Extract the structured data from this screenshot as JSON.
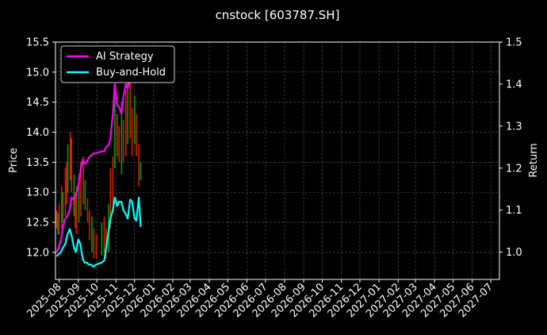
{
  "chart_data": {
    "type": "line",
    "title": "cnstock [603787.SH]",
    "ylabel": "Price",
    "y2label": "Return",
    "ylim": [
      11.55,
      15.5
    ],
    "y2lim": [
      0.935,
      1.5
    ],
    "xlim": [
      "2025-07-26",
      "2027-07-15"
    ],
    "grid": true,
    "legend_position": "top-left",
    "yticks": [
      "12.0",
      "12.5",
      "13.0",
      "13.5",
      "14.0",
      "14.5",
      "15.0",
      "15.5"
    ],
    "y2ticks": [
      "1.0",
      "1.1",
      "1.2",
      "1.3",
      "1.4",
      "1.5"
    ],
    "xticks": [
      "2025-08",
      "2025-09",
      "2025-10",
      "2025-11",
      "2025-12",
      "2026-01",
      "2026-02",
      "2026-03",
      "2026-04",
      "2026-05",
      "2026-06",
      "2026-07",
      "2026-08",
      "2026-09",
      "2026-10",
      "2026-11",
      "2026-12",
      "2027-01",
      "2027-02",
      "2027-03",
      "2027-04",
      "2027-05",
      "2027-06",
      "2027-07"
    ],
    "colors": {
      "up": "#00a000",
      "down": "#d62000",
      "ai": "#ff00ff",
      "bh": "#00ffff",
      "grid": "#555555"
    },
    "candles": [
      {
        "date": "2025-07-28",
        "low": 12.4,
        "high": 12.7
      },
      {
        "date": "2025-07-30",
        "low": 12.3,
        "high": 12.65
      },
      {
        "date": "2025-08-01",
        "low": 12.3,
        "high": 12.8
      },
      {
        "date": "2025-08-05",
        "low": 12.4,
        "high": 13.1
      },
      {
        "date": "2025-08-07",
        "low": 12.5,
        "high": 13.0
      },
      {
        "date": "2025-08-11",
        "low": 12.6,
        "high": 13.4
      },
      {
        "date": "2025-08-13",
        "low": 12.8,
        "high": 13.5
      },
      {
        "date": "2025-08-15",
        "low": 13.0,
        "high": 13.8
      },
      {
        "date": "2025-08-19",
        "low": 13.2,
        "high": 14.0
      },
      {
        "date": "2025-08-21",
        "low": 13.0,
        "high": 13.9
      },
      {
        "date": "2025-08-25",
        "low": 12.6,
        "high": 13.3
      },
      {
        "date": "2025-08-27",
        "low": 12.4,
        "high": 13.0
      },
      {
        "date": "2025-08-29",
        "low": 12.3,
        "high": 13.1
      },
      {
        "date": "2025-09-02",
        "low": 12.5,
        "high": 13.2
      },
      {
        "date": "2025-09-05",
        "low": 12.6,
        "high": 13.5
      },
      {
        "date": "2025-09-09",
        "low": 12.8,
        "high": 13.6
      },
      {
        "date": "2025-09-12",
        "low": 12.7,
        "high": 13.2
      },
      {
        "date": "2025-09-16",
        "low": 12.5,
        "high": 12.9
      },
      {
        "date": "2025-09-19",
        "low": 12.2,
        "high": 12.7
      },
      {
        "date": "2025-09-23",
        "low": 12.0,
        "high": 12.6
      },
      {
        "date": "2025-09-26",
        "low": 11.9,
        "high": 12.4
      },
      {
        "date": "2025-09-30",
        "low": 11.9,
        "high": 12.3
      },
      {
        "date": "2025-10-09",
        "low": 11.95,
        "high": 12.5
      },
      {
        "date": "2025-10-13",
        "low": 12.0,
        "high": 12.6
      },
      {
        "date": "2025-10-16",
        "low": 11.9,
        "high": 12.4
      },
      {
        "date": "2025-10-20",
        "low": 12.0,
        "high": 12.8
      },
      {
        "date": "2025-10-23",
        "low": 12.4,
        "high": 13.4
      },
      {
        "date": "2025-10-27",
        "low": 12.8,
        "high": 13.6
      },
      {
        "date": "2025-10-30",
        "low": 13.4,
        "high": 14.6
      },
      {
        "date": "2025-11-03",
        "low": 13.6,
        "high": 14.3
      },
      {
        "date": "2025-11-06",
        "low": 13.5,
        "high": 14.1
      },
      {
        "date": "2025-11-10",
        "low": 13.3,
        "high": 14.5
      },
      {
        "date": "2025-11-13",
        "low": 13.5,
        "high": 14.2
      },
      {
        "date": "2025-11-17",
        "low": 13.6,
        "high": 14.7
      },
      {
        "date": "2025-11-20",
        "low": 13.8,
        "high": 14.9
      },
      {
        "date": "2025-11-24",
        "low": 13.9,
        "high": 15.0
      },
      {
        "date": "2025-11-27",
        "low": 13.6,
        "high": 14.4
      },
      {
        "date": "2025-12-01",
        "low": 13.8,
        "high": 14.6
      },
      {
        "date": "2025-12-04",
        "low": 13.6,
        "high": 14.3
      },
      {
        "date": "2025-12-08",
        "low": 13.1,
        "high": 13.8
      },
      {
        "date": "2025-12-11",
        "low": 13.2,
        "high": 13.5
      }
    ],
    "series": [
      {
        "name": "AI Strategy",
        "axis": "right",
        "x": [
          "2025-07-28",
          "2025-07-31",
          "2025-08-04",
          "2025-08-07",
          "2025-08-11",
          "2025-08-14",
          "2025-08-18",
          "2025-08-21",
          "2025-08-25",
          "2025-08-28",
          "2025-09-01",
          "2025-09-04",
          "2025-09-08",
          "2025-09-11",
          "2025-09-15",
          "2025-09-18",
          "2025-09-22",
          "2025-09-25",
          "2025-09-29",
          "2025-10-09",
          "2025-10-13",
          "2025-10-16",
          "2025-10-20",
          "2025-10-23",
          "2025-10-27",
          "2025-10-30",
          "2025-11-03",
          "2025-11-06",
          "2025-11-10",
          "2025-11-13",
          "2025-11-17",
          "2025-11-20",
          "2025-11-24",
          "2025-11-27",
          "2025-12-01",
          "2025-12-04"
        ],
        "values": [
          1.0,
          1.01,
          1.03,
          1.06,
          1.08,
          1.085,
          1.1,
          1.13,
          1.125,
          1.135,
          1.16,
          1.19,
          1.22,
          1.21,
          1.215,
          1.225,
          1.23,
          1.235,
          1.235,
          1.24,
          1.24,
          1.25,
          1.255,
          1.27,
          1.33,
          1.4,
          1.35,
          1.345,
          1.33,
          1.37,
          1.4,
          1.39,
          1.41,
          1.42,
          1.43,
          1.435
        ]
      },
      {
        "name": "Buy-and-Hold",
        "axis": "right",
        "x": [
          "2025-07-28",
          "2025-07-31",
          "2025-08-04",
          "2025-08-07",
          "2025-08-11",
          "2025-08-14",
          "2025-08-18",
          "2025-08-21",
          "2025-08-25",
          "2025-08-28",
          "2025-09-01",
          "2025-09-04",
          "2025-09-08",
          "2025-09-11",
          "2025-09-15",
          "2025-09-18",
          "2025-09-22",
          "2025-09-25",
          "2025-09-29",
          "2025-10-09",
          "2025-10-13",
          "2025-10-16",
          "2025-10-20",
          "2025-10-23",
          "2025-10-27",
          "2025-10-30",
          "2025-11-03",
          "2025-11-06",
          "2025-11-10",
          "2025-11-13",
          "2025-11-17",
          "2025-11-20",
          "2025-11-24",
          "2025-11-27",
          "2025-12-01",
          "2025-12-04",
          "2025-12-08",
          "2025-12-11"
        ],
        "values": [
          0.99,
          0.995,
          1.0,
          1.01,
          1.02,
          1.04,
          1.055,
          1.04,
          1.01,
          1.0,
          1.03,
          1.02,
          0.985,
          0.975,
          0.975,
          0.97,
          0.97,
          0.965,
          0.97,
          0.975,
          0.98,
          1.01,
          1.05,
          1.08,
          1.1,
          1.13,
          1.11,
          1.12,
          1.12,
          1.1,
          1.09,
          1.08,
          1.125,
          1.12,
          1.08,
          1.075,
          1.13,
          1.06
        ]
      }
    ]
  }
}
